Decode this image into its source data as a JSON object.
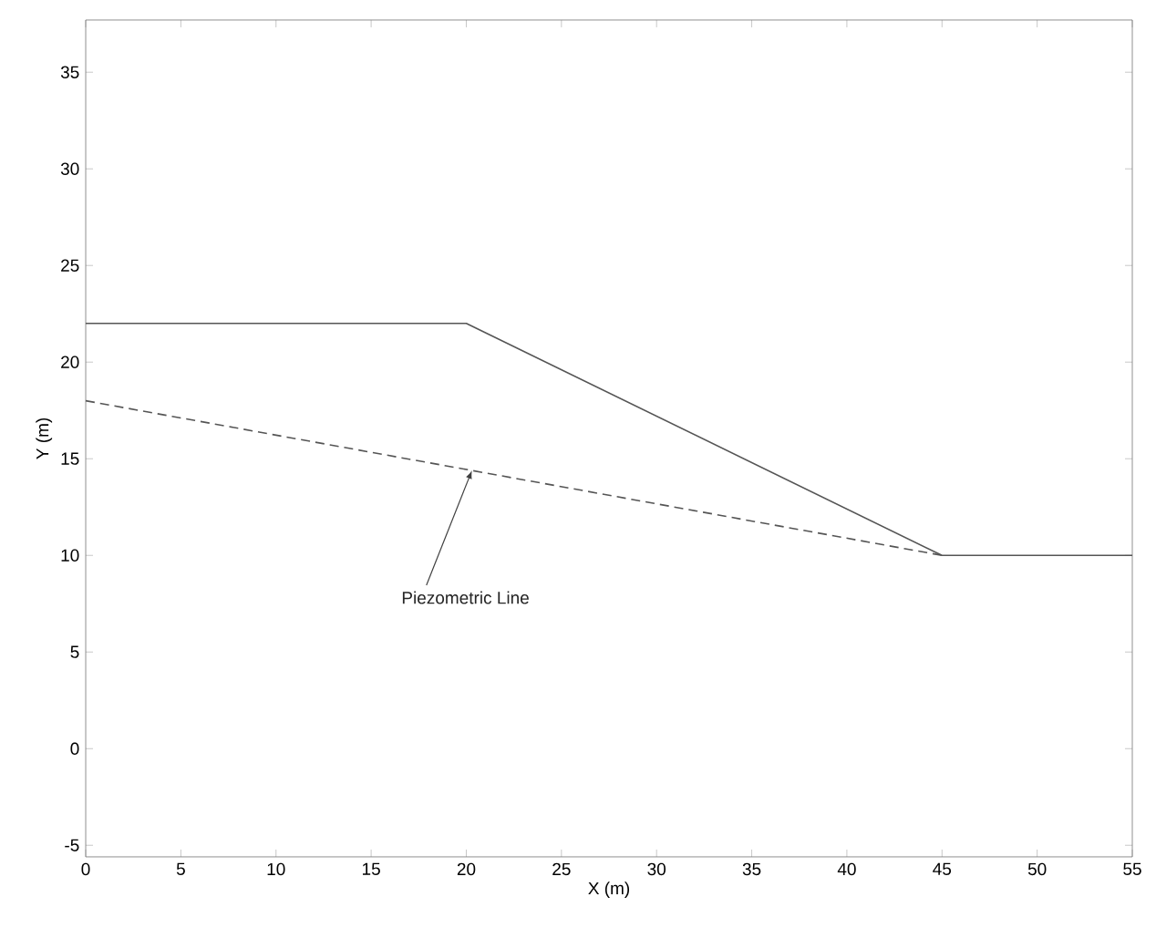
{
  "chart_data": {
    "type": "line",
    "xlabel": "X (m)",
    "ylabel": "Y (m)",
    "xlim": [
      0,
      55
    ],
    "ylim": [
      -5.6,
      37.7
    ],
    "xticks": [
      0,
      5,
      10,
      15,
      20,
      25,
      30,
      35,
      40,
      45,
      50,
      55
    ],
    "yticks": [
      -5,
      0,
      5,
      10,
      15,
      20,
      25,
      30,
      35
    ],
    "marker": "none",
    "series": [
      {
        "color": "#555555",
        "line_style": "solid",
        "x": [
          0,
          20,
          45,
          55
        ],
        "values": [
          22,
          22,
          10,
          10
        ]
      },
      {
        "color": "#555555",
        "line_style": "dashed",
        "x": [
          0,
          45
        ],
        "values": [
          18,
          10
        ]
      }
    ],
    "annotations": [
      {
        "text": "Piezometric Line",
        "x": 20.3,
        "y": 14.4
      }
    ]
  }
}
